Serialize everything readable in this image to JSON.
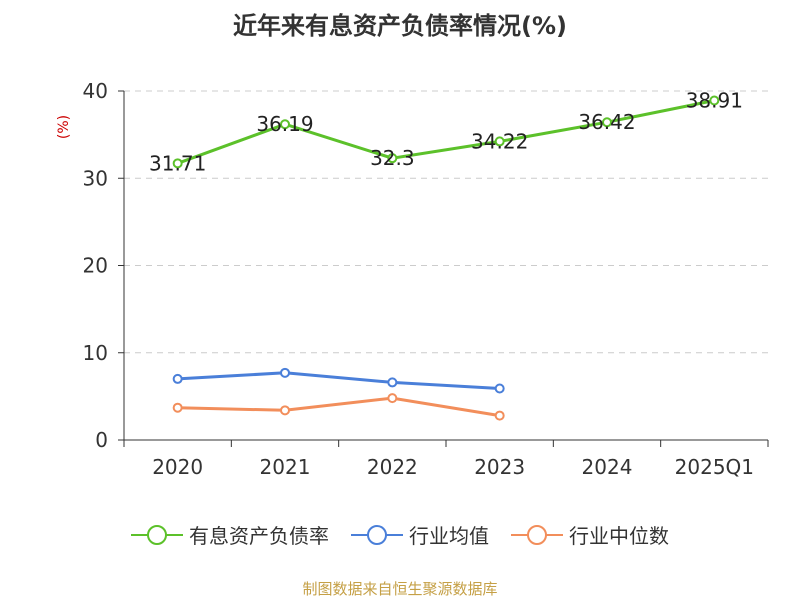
{
  "chart_data": {
    "type": "line",
    "title": "近年来有息资产负债率情况(%)",
    "ylabel": "(%)",
    "xlabel": "",
    "categories": [
      "2020",
      "2021",
      "2022",
      "2023",
      "2024",
      "2025Q1"
    ],
    "ylim": [
      0,
      40
    ],
    "yticks": [
      0,
      10,
      20,
      30,
      40
    ],
    "grid": true,
    "legend_position": "bottom",
    "series": [
      {
        "name": "有息资产负债率",
        "color": "#5cc12a",
        "values": [
          31.71,
          36.19,
          32.3,
          34.22,
          36.42,
          38.91
        ],
        "labels": [
          "31.71",
          "36.19",
          "32.3",
          "34.22",
          "36.42",
          "38.91"
        ]
      },
      {
        "name": "行业均值",
        "color": "#4a7fd9",
        "values": [
          7.0,
          7.7,
          6.6,
          5.9,
          null,
          null
        ]
      },
      {
        "name": "行业中位数",
        "color": "#f28e5b",
        "values": [
          3.7,
          3.4,
          4.8,
          2.8,
          null,
          null
        ]
      }
    ]
  },
  "footer": "制图数据来自恒生聚源数据库"
}
